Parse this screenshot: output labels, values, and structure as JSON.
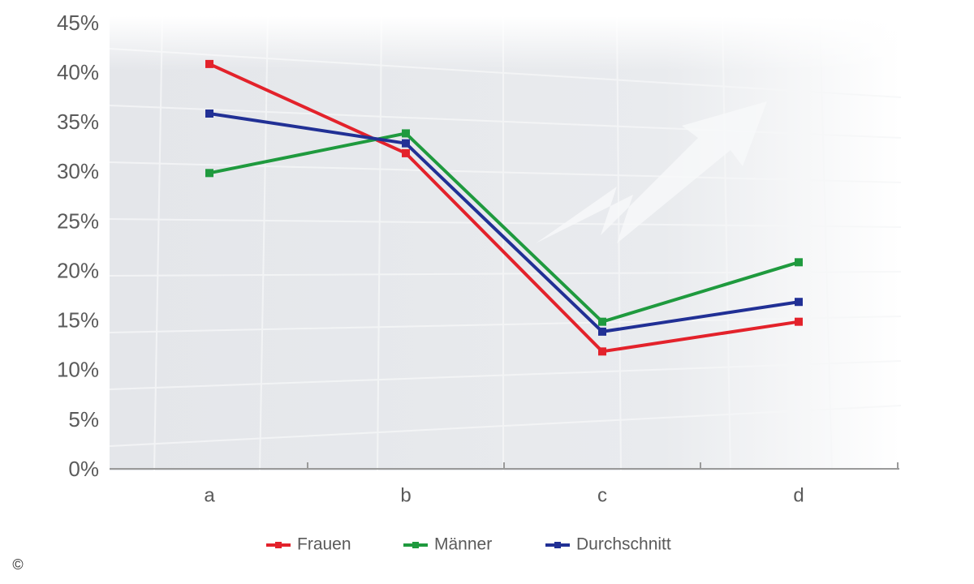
{
  "chart_data": {
    "type": "line",
    "categories": [
      "a",
      "b",
      "c",
      "d"
    ],
    "series": [
      {
        "name": "Frauen",
        "color": "#e3222b",
        "values": [
          41,
          32,
          12,
          15
        ]
      },
      {
        "name": "Männer",
        "color": "#1f9a3e",
        "values": [
          30,
          34,
          15,
          21
        ]
      },
      {
        "name": "Durchschnitt",
        "color": "#213095",
        "values": [
          36,
          33,
          14,
          17
        ]
      }
    ],
    "ylim": [
      0,
      45
    ],
    "yticks": [
      {
        "value": 0,
        "label": "0%"
      },
      {
        "value": 5,
        "label": "5%"
      },
      {
        "value": 10,
        "label": "10%"
      },
      {
        "value": 15,
        "label": "15%"
      },
      {
        "value": 20,
        "label": "20%"
      },
      {
        "value": 25,
        "label": "25%"
      },
      {
        "value": 30,
        "label": "30%"
      },
      {
        "value": 35,
        "label": "35%"
      },
      {
        "value": 40,
        "label": "40%"
      },
      {
        "value": 45,
        "label": "45%"
      }
    ],
    "legend": "bottom",
    "copyright": "©"
  }
}
